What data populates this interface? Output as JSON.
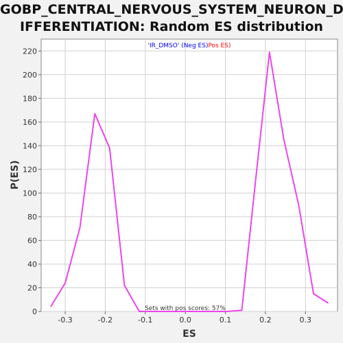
{
  "chart_data": {
    "type": "line",
    "title_lines": [
      "GOBP_CENTRAL_NERVOUS_SYSTEM_NEURON_D",
      "IFFERENTIATION: Random ES distribution"
    ],
    "xlabel": "ES",
    "ylabel": "P(ES)",
    "xlim": [
      -0.36,
      0.38
    ],
    "ylim": [
      0,
      230
    ],
    "xticks": [
      -0.3,
      -0.2,
      -0.1,
      0.0,
      0.1,
      0.2,
      0.3
    ],
    "xtick_labels": [
      "-0.3",
      "-0.2",
      "-0.1",
      "0.0",
      "0.1",
      "0.2",
      "0.3"
    ],
    "yticks": [
      0,
      20,
      40,
      60,
      80,
      100,
      120,
      140,
      160,
      180,
      200,
      220
    ],
    "ytick_labels": [
      "0",
      "20",
      "40",
      "60",
      "80",
      "100",
      "120",
      "140",
      "160",
      "180",
      "200",
      "220"
    ],
    "grid": true,
    "legend": {
      "placement": "top-center",
      "parts": [
        {
          "text": "'IR_DMSO' ",
          "color": "#0000ff"
        },
        {
          "text": "(Neg ES)",
          "color": "#0000ff"
        },
        {
          "text": "Pos ES)",
          "color": "#ff0000"
        }
      ]
    },
    "annotation": "Sets with pos scores: 57%",
    "series": [
      {
        "color": "#ee44ee",
        "x": [
          -0.336,
          -0.3,
          -0.263,
          -0.226,
          -0.189,
          -0.152,
          -0.115,
          -0.078,
          0.104,
          0.141,
          0.172,
          0.21,
          0.246,
          0.283,
          0.32,
          0.357
        ],
        "y": [
          4,
          24,
          71,
          167,
          138,
          22,
          0,
          0,
          0,
          1,
          100,
          219,
          145,
          90,
          15,
          7
        ]
      }
    ]
  }
}
